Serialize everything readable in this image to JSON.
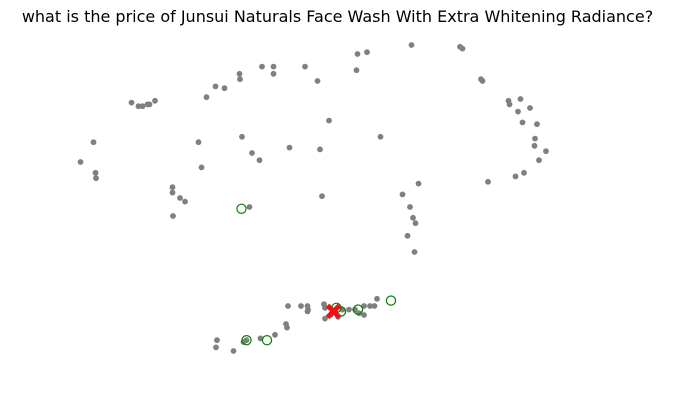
{
  "chart_data": {
    "type": "scatter",
    "title": "what is the price of Junsui Naturals Face Wash With Extra Whitening Radiance?",
    "xlabel": "",
    "ylabel": "",
    "axes_visible": false,
    "grid": false,
    "xlim": [
      0,
      1
    ],
    "ylim": [
      0,
      1
    ],
    "series": [
      {
        "marker": "filled-circle",
        "color": "#808080",
        "points": [
          [
            0.755,
            0.965
          ],
          [
            0.75,
            0.97
          ],
          [
            0.653,
            0.975
          ],
          [
            0.564,
            0.955
          ],
          [
            0.545,
            0.95
          ],
          [
            0.543,
            0.905
          ],
          [
            0.44,
            0.915
          ],
          [
            0.354,
            0.915
          ],
          [
            0.31,
            0.88
          ],
          [
            0.309,
            0.895
          ],
          [
            0.377,
            0.895
          ],
          [
            0.377,
            0.915
          ],
          [
            0.465,
            0.875
          ],
          [
            0.792,
            0.88
          ],
          [
            0.795,
            0.875
          ],
          [
            0.261,
            0.86
          ],
          [
            0.243,
            0.83
          ],
          [
            0.279,
            0.855
          ],
          [
            0.093,
            0.815
          ],
          [
            0.125,
            0.81
          ],
          [
            0.14,
            0.82
          ],
          [
            0.129,
            0.81
          ],
          [
            0.115,
            0.805
          ],
          [
            0.107,
            0.805
          ],
          [
            0.488,
            0.765
          ],
          [
            0.847,
            0.82
          ],
          [
            0.849,
            0.81
          ],
          [
            0.871,
            0.825
          ],
          [
            0.89,
            0.8
          ],
          [
            0.866,
            0.79
          ],
          [
            0.875,
            0.76
          ],
          [
            0.904,
            0.755
          ],
          [
            0.9,
            0.715
          ],
          [
            0.899,
            0.695
          ],
          [
            0.922,
            0.68
          ],
          [
            0.591,
            0.72
          ],
          [
            0.47,
            0.685
          ],
          [
            0.409,
            0.69
          ],
          [
            0.314,
            0.72
          ],
          [
            0.227,
            0.705
          ],
          [
            0.334,
            0.675
          ],
          [
            0.349,
            0.655
          ],
          [
            0.017,
            0.705
          ],
          [
            -0.009,
            0.65
          ],
          [
            0.021,
            0.62
          ],
          [
            0.022,
            0.605
          ],
          [
            0.233,
            0.635
          ],
          [
            0.175,
            0.58
          ],
          [
            0.175,
            0.565
          ],
          [
            0.19,
            0.55
          ],
          [
            0.2,
            0.54
          ],
          [
            0.176,
            0.5
          ],
          [
            0.329,
            0.525
          ],
          [
            0.474,
            0.555
          ],
          [
            0.667,
            0.59
          ],
          [
            0.806,
            0.595
          ],
          [
            0.861,
            0.61
          ],
          [
            0.878,
            0.62
          ],
          [
            0.908,
            0.655
          ],
          [
            0.635,
            0.56
          ],
          [
            0.65,
            0.525
          ],
          [
            0.656,
            0.495
          ],
          [
            0.661,
            0.48
          ],
          [
            0.645,
            0.445
          ],
          [
            0.659,
            0.4
          ],
          [
            0.406,
            0.25
          ],
          [
            0.445,
            0.25
          ],
          [
            0.478,
            0.255
          ],
          [
            0.48,
            0.245
          ],
          [
            0.5,
            0.235
          ],
          [
            0.515,
            0.24
          ],
          [
            0.528,
            0.24
          ],
          [
            0.54,
            0.24
          ],
          [
            0.558,
            0.25
          ],
          [
            0.548,
            0.23
          ],
          [
            0.558,
            0.225
          ],
          [
            0.57,
            0.25
          ],
          [
            0.584,
            0.27
          ],
          [
            0.579,
            0.25
          ],
          [
            0.506,
            0.22
          ],
          [
            0.491,
            0.225
          ],
          [
            0.48,
            0.215
          ],
          [
            0.446,
            0.24
          ],
          [
            0.432,
            0.25
          ],
          [
            0.445,
            0.235
          ],
          [
            0.402,
            0.2
          ],
          [
            0.38,
            0.17
          ],
          [
            0.351,
            0.16
          ],
          [
            0.323,
            0.155
          ],
          [
            0.317,
            0.15
          ],
          [
            0.264,
            0.155
          ],
          [
            0.262,
            0.135
          ],
          [
            0.297,
            0.125
          ],
          [
            0.404,
            0.19
          ]
        ]
      },
      {
        "marker": "hollow-circle",
        "color": "#008000",
        "points": [
          [
            0.313,
            0.52
          ],
          [
            0.323,
            0.155
          ],
          [
            0.364,
            0.155
          ],
          [
            0.503,
            0.245
          ],
          [
            0.512,
            0.235
          ],
          [
            0.546,
            0.24
          ],
          [
            0.612,
            0.265
          ]
        ]
      },
      {
        "marker": "x-marker",
        "color": "#ee1111",
        "points": [
          [
            0.497,
            0.235
          ]
        ]
      }
    ]
  }
}
